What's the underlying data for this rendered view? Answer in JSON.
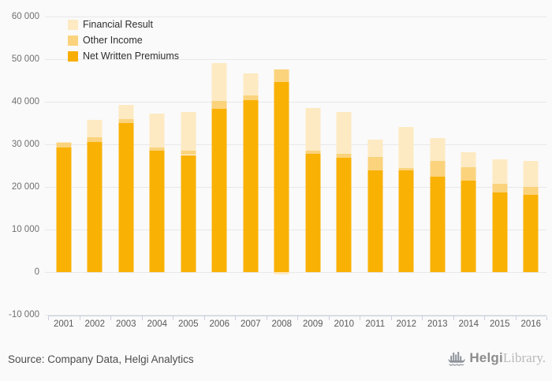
{
  "legend": {
    "items": [
      {
        "label": "Financial Result",
        "color": "#fdeac2"
      },
      {
        "label": "Other Income",
        "color": "#fbd37c"
      },
      {
        "label": "Net Written Premiums",
        "color": "#f8ae00"
      }
    ]
  },
  "chart_data": {
    "type": "bar",
    "stacked": true,
    "title": "",
    "xlabel": "",
    "ylabel": "",
    "ylim": [
      -10370,
      60000
    ],
    "grid": true,
    "legend_position": "top-left",
    "categories": [
      "2001",
      "2002",
      "2003",
      "2004",
      "2005",
      "2006",
      "2007",
      "2008",
      "2009",
      "2010",
      "2011",
      "2012",
      "2013",
      "2014",
      "2015",
      "2016"
    ],
    "series": [
      {
        "name": "Net Written Premiums",
        "color": "#f9b104",
        "values": [
          29200,
          30600,
          35000,
          28500,
          27500,
          38300,
          40300,
          44600,
          27700,
          26900,
          23900,
          23800,
          22400,
          21500,
          18700,
          18200
        ]
      },
      {
        "name": "Other Income",
        "color": "#fbd37c",
        "values": [
          1200,
          1000,
          1000,
          700,
          1000,
          1800,
          1200,
          3000,
          800,
          800,
          3100,
          600,
          3700,
          3200,
          2000,
          1800
        ]
      },
      {
        "name": "Financial Result",
        "color": "#fdeac2",
        "values": [
          200,
          4200,
          3200,
          8100,
          9100,
          9000,
          5200,
          -500,
          10100,
          9900,
          4200,
          9600,
          5300,
          3400,
          5700,
          6100
        ]
      }
    ],
    "yticks": [
      {
        "label": "60 000",
        "value": 60000
      },
      {
        "label": "50 000",
        "value": 50000
      },
      {
        "label": "40 000",
        "value": 40000
      },
      {
        "label": "30 000",
        "value": 30000
      },
      {
        "label": "20 000",
        "value": 20000
      },
      {
        "label": "10 000",
        "value": 10000
      },
      {
        "label": "0",
        "value": 0
      },
      {
        "label": "-10 000",
        "value": -10000
      }
    ]
  },
  "footer": {
    "source": "Source: Company Data, Helgi Analytics",
    "logo": {
      "brand": "Helgi",
      "suffix": "Library",
      "period": "."
    }
  }
}
